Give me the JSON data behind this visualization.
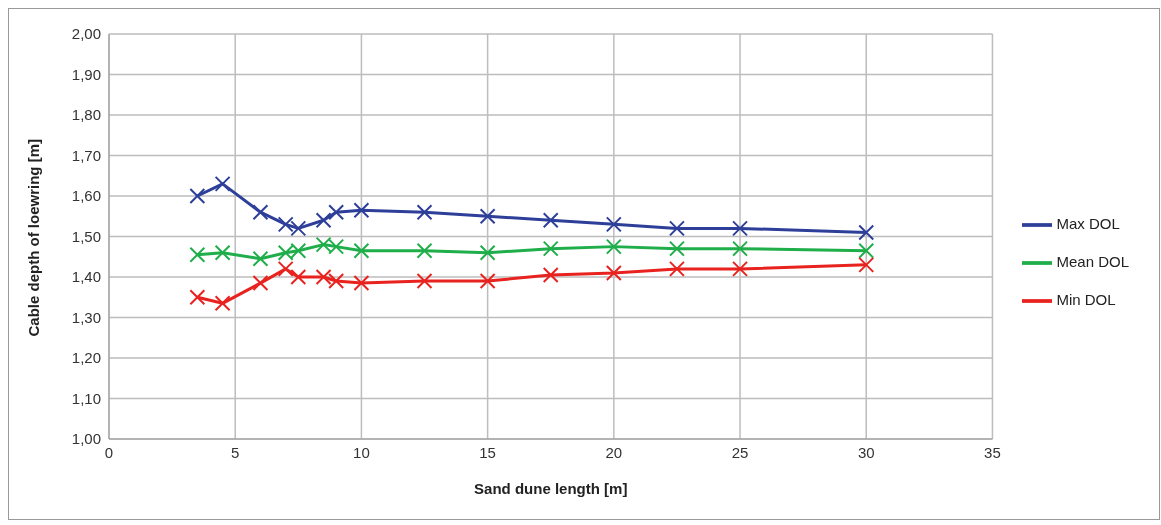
{
  "chart_data": {
    "type": "line",
    "xlabel": "Sand dune length [m]",
    "ylabel": "Cable depth of loewring [m]",
    "x": [
      3.5,
      4.5,
      6,
      7,
      7.5,
      8.5,
      9,
      10,
      12.5,
      15,
      17.5,
      20,
      22.5,
      25,
      30
    ],
    "series": [
      {
        "name": "Max DOL",
        "color": "#2e3f9a",
        "values": [
          1.6,
          1.63,
          1.56,
          1.53,
          1.52,
          1.54,
          1.56,
          1.565,
          1.56,
          1.55,
          1.54,
          1.53,
          1.52,
          1.52,
          1.51
        ]
      },
      {
        "name": "Mean DOL",
        "color": "#1fae4a",
        "values": [
          1.455,
          1.46,
          1.445,
          1.46,
          1.465,
          1.48,
          1.475,
          1.465,
          1.465,
          1.46,
          1.47,
          1.475,
          1.47,
          1.47,
          1.465
        ]
      },
      {
        "name": "Min DOL",
        "color": "#e8231f",
        "values": [
          1.35,
          1.335,
          1.385,
          1.42,
          1.4,
          1.4,
          1.39,
          1.385,
          1.39,
          1.39,
          1.405,
          1.41,
          1.42,
          1.42,
          1.43
        ]
      }
    ],
    "xlim": [
      0,
      35
    ],
    "xticks": [
      0,
      5,
      10,
      15,
      20,
      25,
      30,
      35
    ],
    "ylim": [
      1,
      2
    ],
    "yticks": [
      {
        "value": 1,
        "label": "1,00"
      },
      {
        "value": 1.1,
        "label": "1,10"
      },
      {
        "value": 1.2,
        "label": "1,20"
      },
      {
        "value": 1.3,
        "label": "1,30"
      },
      {
        "value": 1.4,
        "label": "1,40"
      },
      {
        "value": 1.5,
        "label": "1,50"
      },
      {
        "value": 1.6,
        "label": "1,60"
      },
      {
        "value": 1.7,
        "label": "1,70"
      },
      {
        "value": 1.8,
        "label": "1,80"
      },
      {
        "value": 1.9,
        "label": "1,90"
      },
      {
        "value": 2,
        "label": "2,00"
      }
    ],
    "grid": true,
    "legend": "right",
    "marker": "cross",
    "line_style": "solid"
  }
}
